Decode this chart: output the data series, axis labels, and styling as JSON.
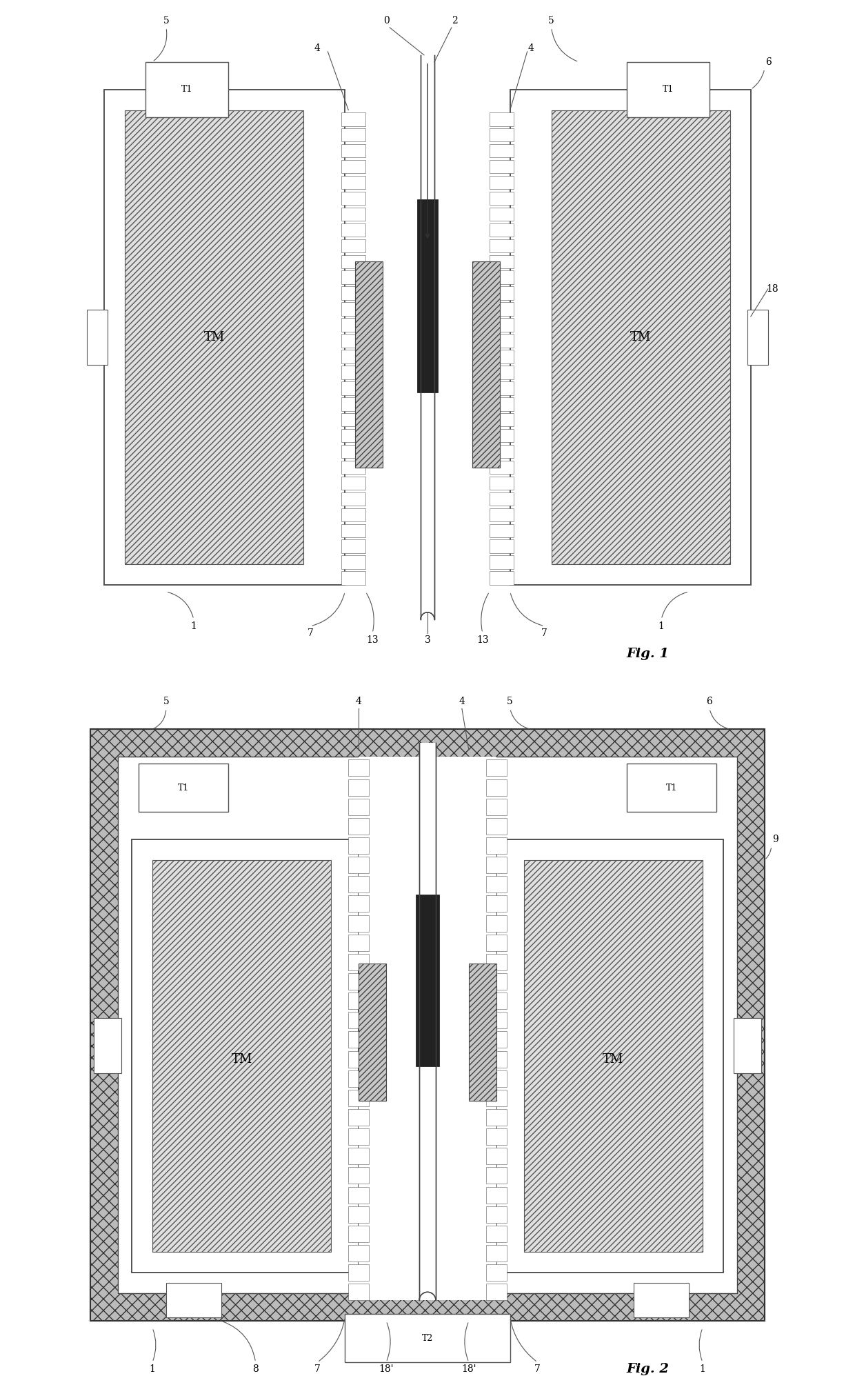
{
  "bg_color": "#ffffff",
  "fig1_title": "Fig. 1",
  "fig2_title": "Fig. 2",
  "labels": {
    "TM": "TM",
    "T1": "T1",
    "T2": "T2"
  }
}
